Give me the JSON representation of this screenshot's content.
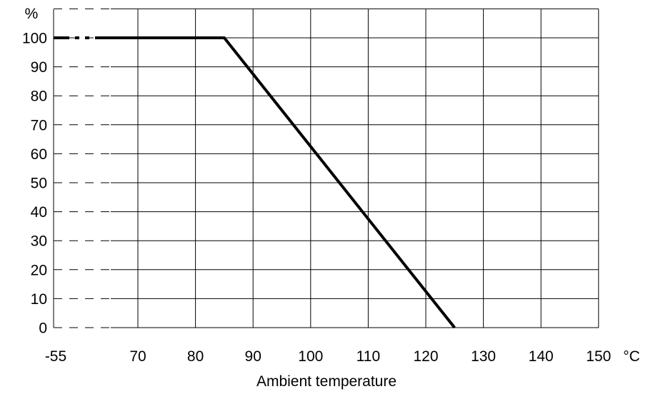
{
  "chart_data": {
    "type": "line",
    "title": "",
    "xlabel": "Ambient temperature",
    "ylabel": "%",
    "x_unit": "°C",
    "x_ticks": [
      "-55",
      "70",
      "80",
      "90",
      "100",
      "110",
      "120",
      "130",
      "140",
      "150"
    ],
    "y_ticks": [
      "0",
      "10",
      "20",
      "30",
      "40",
      "50",
      "60",
      "70",
      "80",
      "90",
      "100"
    ],
    "xlim": [
      -55,
      150
    ],
    "ylim": [
      0,
      110
    ],
    "axis_break": "between -55 and 70 on the x-axis (shown dashed)",
    "grid": true,
    "series": [
      {
        "x": [
          -55,
          85,
          125
        ],
        "y": [
          100,
          100,
          0
        ],
        "color": "#000000"
      }
    ]
  }
}
